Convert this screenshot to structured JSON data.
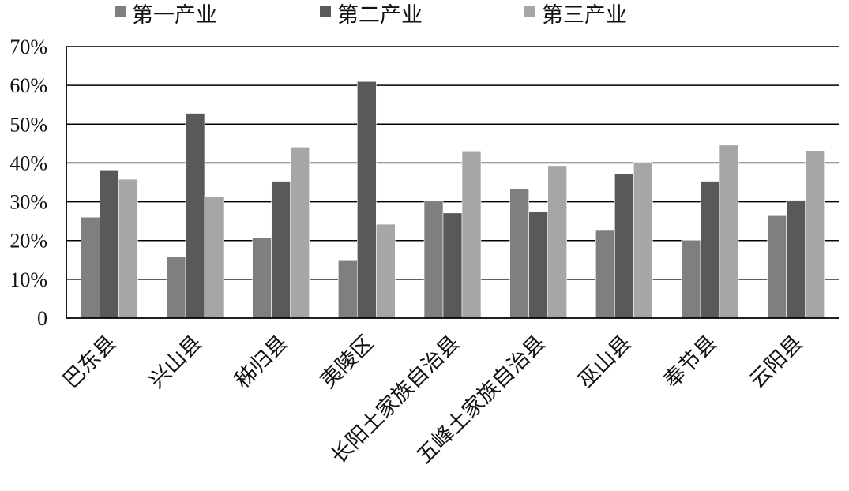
{
  "chart_data": {
    "type": "bar",
    "categories": [
      "巴东县",
      "兴山县",
      "秭归县",
      "夷陵区",
      "长阳土家族自治县",
      "五峰土家族自治县",
      "巫山县",
      "奉节县",
      "云阳县"
    ],
    "series": [
      {
        "name": "第一产业",
        "color": "#7f7f7f",
        "values": [
          26,
          15.8,
          20.7,
          14.8,
          30.2,
          33.3,
          22.8,
          20.1,
          26.6
        ]
      },
      {
        "name": "第二产业",
        "color": "#595959",
        "values": [
          38.2,
          52.8,
          35.3,
          61,
          27.1,
          27.5,
          37.2,
          35.3,
          30.4
        ]
      },
      {
        "name": "第三产业",
        "color": "#a6a6a6",
        "values": [
          35.8,
          31.4,
          44.1,
          24.2,
          43.1,
          39.3,
          40.1,
          44.6,
          43.2
        ]
      }
    ],
    "ylim": [
      0,
      70
    ],
    "yticks": [
      0,
      10,
      20,
      30,
      40,
      50,
      60,
      70
    ],
    "ytick_labels": [
      "0",
      "10%",
      "20%",
      "30%",
      "40%",
      "50%",
      "60%",
      "70%"
    ],
    "grid": true,
    "legend_position": "top",
    "xlabel": "",
    "ylabel": "",
    "title": ""
  }
}
